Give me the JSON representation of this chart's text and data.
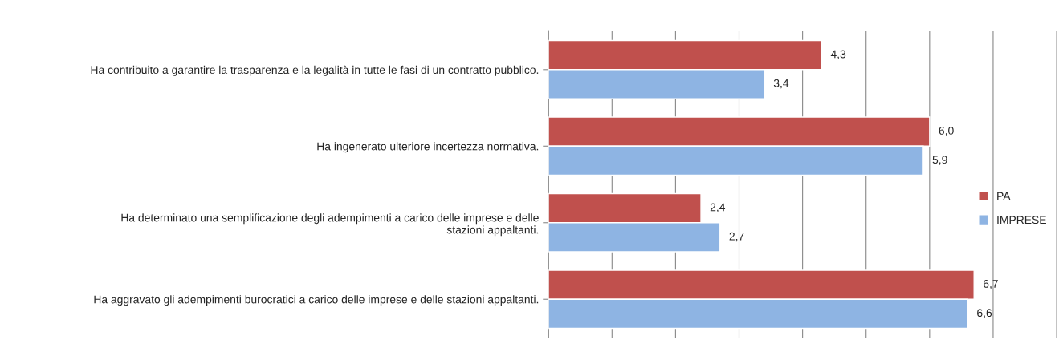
{
  "chart_data": {
    "type": "bar",
    "orientation": "horizontal",
    "categories": [
      "Ha contribuito a garantire la trasparenza e la legalità in tutte le fasi di un contratto pubblico.",
      "Ha ingenerato ulteriore incertezza normativa.",
      "Ha determinato una semplificazione degli adempimenti a carico delle imprese e delle\nstazioni appaltanti.",
      "Ha aggravato gli adempimenti burocratici a carico delle imprese e delle stazioni appaltanti."
    ],
    "series": [
      {
        "name": "PA",
        "color": "#c0504d",
        "values": [
          4.3,
          6.0,
          2.4,
          6.7
        ],
        "value_labels": [
          "4,3",
          "6,0",
          "2,4",
          "6,7"
        ]
      },
      {
        "name": "IMPRESE",
        "color": "#8eb4e3",
        "values": [
          3.4,
          5.9,
          2.7,
          6.6
        ],
        "value_labels": [
          "3,4",
          "5,9",
          "2,7",
          "6,6"
        ]
      }
    ],
    "xlim": [
      0,
      8
    ],
    "xticks": [
      {
        "value": 0,
        "label": null
      },
      {
        "value": 1,
        "label": null
      },
      {
        "value": 2,
        "label": null
      },
      {
        "value": 3,
        "label": null
      },
      {
        "value": 4,
        "label": null
      },
      {
        "value": 5,
        "label": null
      },
      {
        "value": 6,
        "label": null
      },
      {
        "value": 7,
        "label": null
      },
      {
        "value": 8,
        "label": null
      }
    ],
    "tick_labels": "y",
    "grid": "x",
    "legend": "right"
  }
}
